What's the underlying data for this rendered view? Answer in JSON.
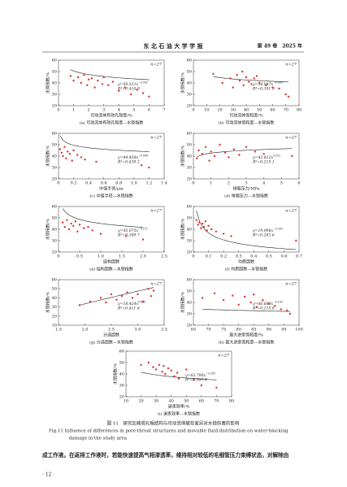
{
  "header": {
    "journal": "东 北 石 油 大 学 学 报",
    "issue": "第 49 卷　2025 年"
  },
  "chart_data": [
    {
      "type": "scatter",
      "caption": "(a) 可动流体有效孔隙度—水锁指数",
      "xlabel": "可动流体有效孔隙度/%",
      "ylabel": "水锁指数/%",
      "n_label": "n=27",
      "equation": {
        "a": 50.521,
        "b": -0.092,
        "label": "y=50.521x",
        "exponent_label": "−0.092"
      },
      "r2_label": "R²=0.410 9",
      "color": "#d9342b",
      "xlim": [
        0,
        7
      ],
      "xticks": [
        0,
        1,
        2,
        3,
        4,
        5,
        6,
        7
      ],
      "ylim": [
        20,
        60
      ],
      "yticks": [
        20,
        30,
        40,
        50,
        60
      ],
      "x": [
        0.8,
        1.0,
        1.3,
        1.5,
        1.7,
        1.9,
        2.0,
        2.2,
        2.4,
        2.6,
        2.9,
        3.0,
        3.3,
        3.6,
        4.0,
        4.4,
        4.8,
        5.2,
        5.6,
        6.0
      ],
      "y": [
        46,
        42,
        45,
        40,
        47,
        38,
        43,
        44,
        36,
        42,
        39,
        45,
        38,
        41,
        33,
        36,
        30,
        34,
        31,
        28
      ]
    },
    {
      "type": "scatter",
      "caption": "(b) 可动流体饱和度—水锁指数",
      "xlabel": "可动流体饱和度/%",
      "ylabel": "水锁指数/%",
      "n_label": "n=27",
      "equation": {
        "a": 54.947,
        "b": -0.069,
        "label": "y=54.947x",
        "exponent_label": "−0.069"
      },
      "r2_label": "R²=0.301 9",
      "color": "#d9342b",
      "xlim": [
        0,
        80
      ],
      "xticks": [
        0,
        10,
        20,
        30,
        40,
        50,
        60,
        70,
        80
      ],
      "ylim": [
        20,
        60
      ],
      "yticks": [
        20,
        30,
        40,
        50,
        60
      ],
      "x": [
        15,
        22,
        28,
        30,
        33,
        35,
        37,
        38,
        40,
        42,
        44,
        46,
        48,
        50,
        55,
        60,
        65,
        70,
        72
      ],
      "y": [
        48,
        40,
        44,
        36,
        47,
        42,
        50,
        38,
        45,
        41,
        39,
        44,
        46,
        40,
        38,
        36,
        35,
        30,
        28
      ]
    },
    {
      "type": "scatter",
      "caption": "(c) 中值半径—水锁指数",
      "xlabel": "中值半径/μm",
      "ylabel": "水锁指数/%",
      "n_label": "n=27",
      "equation": {
        "a": 44.458,
        "b": -0.068,
        "label": "y=44.458x",
        "exponent_label": "−0.068"
      },
      "r2_label": "R²=0.439 2",
      "color": "#d9342b",
      "xlim": [
        0,
        1.4
      ],
      "xticks": [
        0,
        0.2,
        0.4,
        0.6,
        0.8,
        {
          "value": 1,
          "label": "1.0"
        },
        1.2,
        1.4
      ],
      "ylim": [
        20,
        60
      ],
      "yticks": [
        20,
        30,
        40,
        50,
        60
      ],
      "x": [
        0.02,
        0.04,
        0.06,
        0.08,
        0.1,
        0.12,
        0.15,
        0.18,
        0.2,
        0.25,
        0.3,
        0.35,
        0.5,
        1.1,
        1.2
      ],
      "y": [
        46,
        43,
        40,
        48,
        38,
        44,
        42,
        36,
        45,
        41,
        39,
        37,
        35,
        32,
        30
      ]
    },
    {
      "type": "scatter",
      "caption": "(d) 排驱压力—水锁指数",
      "xlabel": "排驱压力/MPa",
      "ylabel": "水锁指数/%",
      "n_label": "n=27",
      "equation": {
        "a": 42.612,
        "b": 0.052,
        "label": "y=42.612x",
        "exponent_label": "0.052"
      },
      "r2_label": "R²=0.215 1",
      "color": "#d9342b",
      "xlim": [
        0,
        6
      ],
      "xticks": [
        0,
        1,
        2,
        3,
        4,
        5,
        6
      ],
      "ylim": [
        20,
        60
      ],
      "yticks": [
        20,
        30,
        40,
        50,
        60
      ],
      "x": [
        0.2,
        0.3,
        0.5,
        0.7,
        0.9,
        1.0,
        1.2,
        1.5,
        1.8,
        2.0,
        2.3,
        2.6,
        3.0,
        3.5,
        4.0,
        5.6
      ],
      "y": [
        38,
        45,
        42,
        48,
        36,
        44,
        40,
        50,
        43,
        39,
        46,
        41,
        48,
        44,
        42,
        40
      ]
    },
    {
      "type": "scatter",
      "caption": "(e) 结构因数—水锁指数",
      "xlabel": "结构因数",
      "ylabel": "水锁指数/%",
      "n_label": "n=27",
      "equation": {
        "a": 45.075,
        "b": -0.111,
        "label": "y=45.075x",
        "exponent_label": "−0.111"
      },
      "r2_label": "R²=0.389 7",
      "color": "#d9342b",
      "xlim": [
        0,
        2.5
      ],
      "xticks": [
        0,
        0.5,
        {
          "value": 1,
          "label": "1.0"
        },
        1.5,
        {
          "value": 2,
          "label": "2.0"
        },
        2.5
      ],
      "ylim": [
        20,
        60
      ],
      "yticks": [
        20,
        30,
        40,
        50,
        60
      ],
      "x": [
        0.1,
        0.15,
        0.2,
        0.25,
        0.3,
        0.35,
        0.4,
        0.45,
        0.5,
        0.6,
        0.7,
        0.8,
        1.0,
        1.6,
        2.0
      ],
      "y": [
        46,
        42,
        48,
        40,
        45,
        43,
        47,
        38,
        44,
        41,
        42,
        39,
        36,
        34,
        31
      ]
    },
    {
      "type": "scatter",
      "caption": "(f) 均质因数—水锁指数",
      "xlabel": "均质因数",
      "ylabel": "水锁指数/%",
      "n_label": "n=27",
      "equation": {
        "a": 19.996,
        "b": -0.265,
        "label": "y=19.996x",
        "exponent_label": "−0.265"
      },
      "r2_label": "R²=0.283 6",
      "color": "#d9342b",
      "xlim": [
        0,
        0.7
      ],
      "xticks": [
        0,
        0.1,
        0.2,
        0.3,
        0.4,
        0.5,
        0.6,
        0.7
      ],
      "ylim": [
        20,
        60
      ],
      "yticks": [
        20,
        30,
        40,
        50,
        60
      ],
      "x": [
        0.02,
        0.03,
        0.04,
        0.05,
        0.06,
        0.07,
        0.08,
        0.09,
        0.1,
        0.12,
        0.15,
        0.2,
        0.25,
        0.68
      ],
      "y": [
        48,
        44,
        46,
        41,
        45,
        42,
        47,
        39,
        43,
        40,
        38,
        36,
        34,
        30
      ]
    },
    {
      "type": "scatter",
      "caption": "(g) 分选因数—水锁指数",
      "xlabel": "分选因数",
      "ylabel": "水锁指数/%",
      "n_label": "n=27",
      "equation": {
        "a": 18.424,
        "b": 0.86,
        "label": "y=18.424x",
        "exponent_label": "0.860"
      },
      "r2_label": "R²=0.411 8",
      "color": "#d9342b",
      "xlim": [
        1.5,
        3.5
      ],
      "xticks": [
        1.5,
        {
          "value": 2,
          "label": "2.0"
        },
        2.5,
        {
          "value": 3,
          "label": "3.0"
        },
        3.5
      ],
      "ylim": [
        10,
        60
      ],
      "yticks": [
        10,
        20,
        30,
        40,
        50,
        60
      ],
      "x": [
        1.9,
        2.1,
        2.3,
        2.4,
        2.5,
        2.6,
        2.7,
        2.8,
        2.9,
        3.0,
        3.1,
        3.2,
        3.25,
        3.3
      ],
      "y": [
        32,
        36,
        40,
        35,
        44,
        38,
        42,
        46,
        40,
        44,
        36,
        50,
        42,
        48
      ]
    },
    {
      "type": "scatter",
      "caption": "(h) 最大进汞饱和度—水锁指数",
      "xlabel": "最大进汞饱和度/%",
      "ylabel": "水锁指数/%",
      "n_label": "n=27",
      "equation": {
        "a": 66.663,
        "b": -0.16,
        "label": "y=66.663x",
        "exponent_label": "−0.160"
      },
      "r2_label": "R²=0.215 8",
      "color": "#d9342b",
      "xlim": [
        65,
        100
      ],
      "xticks": [
        65,
        70,
        75,
        80,
        85,
        90,
        95,
        100
      ],
      "ylim": [
        20,
        60
      ],
      "yticks": [
        20,
        30,
        40,
        50,
        60
      ],
      "x": [
        68,
        72,
        75,
        78,
        80,
        82,
        84,
        85,
        86,
        88,
        90,
        92,
        94,
        96,
        97
      ],
      "y": [
        44,
        48,
        42,
        46,
        38,
        45,
        40,
        47,
        36,
        42,
        39,
        37,
        34,
        33,
        30
      ]
    },
    {
      "type": "scatter",
      "caption": "(i) 退汞效率—水锁指数",
      "xlabel": "退汞效率/%",
      "ylabel": "水锁指数/%",
      "n_label": "n=27",
      "equation": {
        "a": 63.796,
        "b": -0.143,
        "label": "y=63.796x",
        "exponent_label": "−0.143"
      },
      "r2_label": "R²=0.507 9",
      "color": "#d9342b",
      "xlim": [
        10,
        80
      ],
      "xticks": [
        10,
        20,
        30,
        40,
        50,
        60,
        70,
        80
      ],
      "ylim": [
        20,
        60
      ],
      "yticks": [
        20,
        30,
        40,
        50,
        60
      ],
      "x": [
        20,
        25,
        28,
        30,
        32,
        34,
        35,
        36,
        38,
        40,
        42,
        44,
        45,
        50,
        55,
        60,
        70
      ],
      "y": [
        48,
        50,
        46,
        44,
        48,
        42,
        47,
        40,
        45,
        43,
        38,
        41,
        36,
        44,
        35,
        30,
        28
      ]
    }
  ],
  "figure": {
    "caption": "图 11　研究区微观孔喉结构与可动流体赋存差异对水锁伤害的影响",
    "caption_en_1": "Fig.11  Influence of differences in pore-throat structures and movable fluid distribution on water-blocking",
    "caption_en_2": "damage in the study area"
  },
  "body": "成工作液。在返排工作液时，若能快速提高气相渗透率，维持相对较低的毛细管压力束缚状态，对解除由",
  "page_number": "· 12 ·"
}
